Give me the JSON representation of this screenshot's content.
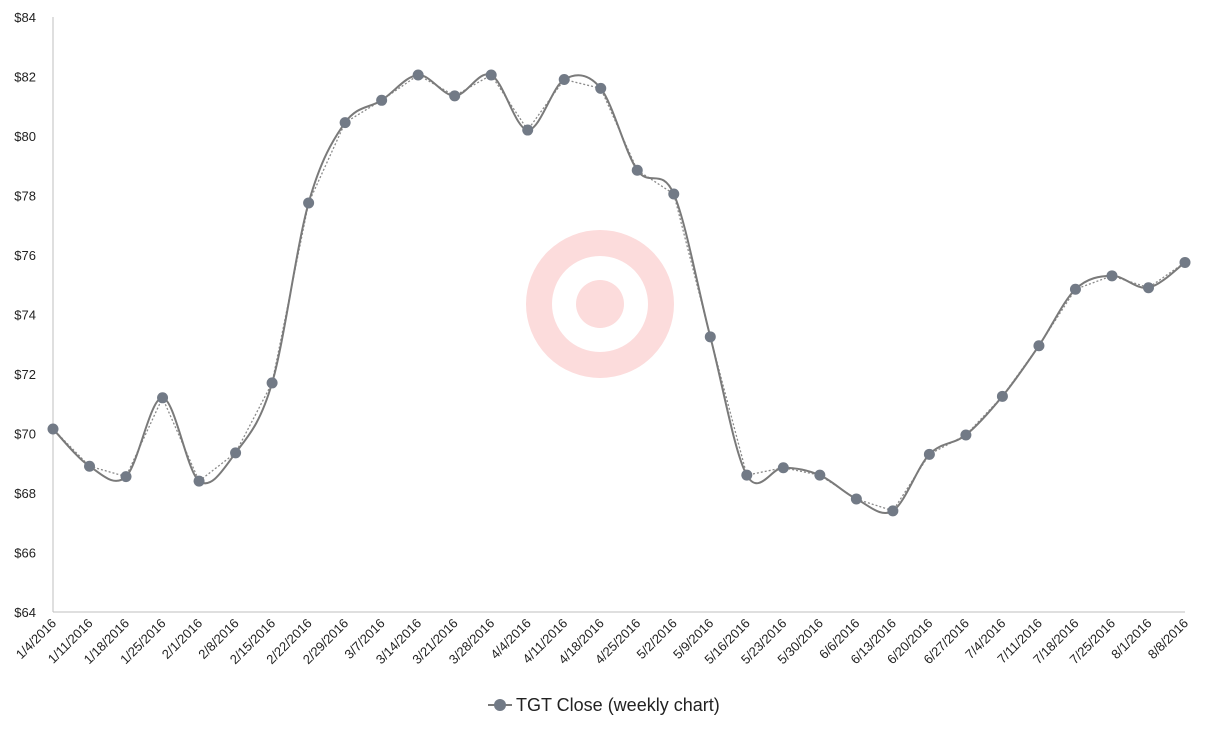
{
  "chart_data": {
    "type": "line",
    "title": "",
    "xlabel": "",
    "ylabel": "",
    "ylim": [
      64,
      84
    ],
    "y_ticks": [
      64,
      66,
      68,
      70,
      72,
      74,
      76,
      78,
      80,
      82,
      84
    ],
    "y_tick_labels": [
      "$64",
      "$66",
      "$68",
      "$70",
      "$72",
      "$74",
      "$76",
      "$78",
      "$80",
      "$82",
      "$84"
    ],
    "categories": [
      "1/4/2016",
      "1/11/2016",
      "1/18/2016",
      "1/25/2016",
      "2/1/2016",
      "2/8/2016",
      "2/15/2016",
      "2/22/2016",
      "2/29/2016",
      "3/7/2016",
      "3/14/2016",
      "3/21/2016",
      "3/28/2016",
      "4/4/2016",
      "4/11/2016",
      "4/18/2016",
      "4/25/2016",
      "5/2/2016",
      "5/9/2016",
      "5/16/2016",
      "5/23/2016",
      "5/30/2016",
      "6/6/2016",
      "6/13/2016",
      "6/20/2016",
      "6/27/2016",
      "7/4/2016",
      "7/11/2016",
      "7/18/2016",
      "7/25/2016",
      "8/1/2016",
      "8/8/2016"
    ],
    "series": [
      {
        "name": "TGT Close (weekly chart)",
        "values": [
          70.15,
          68.9,
          68.55,
          71.2,
          68.4,
          69.35,
          71.7,
          77.75,
          80.45,
          81.2,
          82.05,
          81.35,
          82.05,
          80.2,
          81.9,
          81.6,
          78.85,
          78.05,
          73.25,
          68.6,
          68.85,
          68.6,
          67.8,
          67.4,
          69.3,
          69.95,
          71.25,
          72.95,
          74.85,
          75.3,
          74.9,
          75.75
        ]
      }
    ],
    "grid": false,
    "legend_position": "bottom",
    "colors": {
      "series_line": "#7a7a7a",
      "marker": "#727a86",
      "trend_line": "#8a8a8a",
      "axis": "#bfbfbf",
      "logo": "#fcdcdc"
    },
    "background_logo": "target-logo-icon"
  }
}
